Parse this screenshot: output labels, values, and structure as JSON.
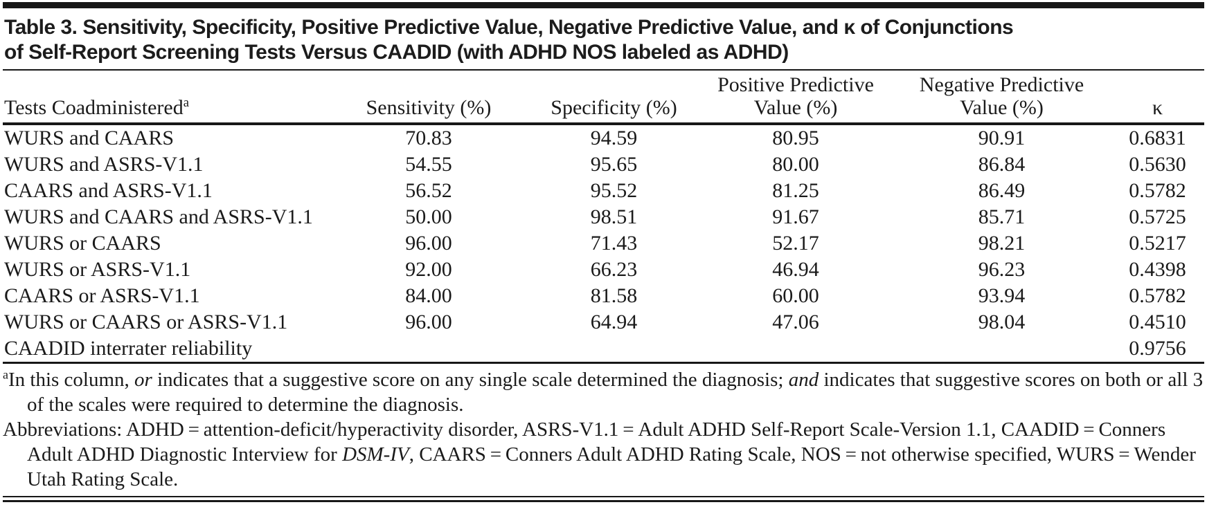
{
  "title": {
    "line1": "Table 3. Sensitivity, Specificity, Positive Predictive Value, Negative Predictive Value, and κ of Conjunctions",
    "line2": "of Self-Report Screening Tests Versus CAADID (with ADHD NOS labeled as ADHD)"
  },
  "table": {
    "columns": [
      {
        "id": "tests",
        "lines": [
          "Tests Coadministered"
        ],
        "sup": "a",
        "align": "left"
      },
      {
        "id": "sensitivity",
        "lines": [
          "Sensitivity (%)"
        ],
        "align": "center"
      },
      {
        "id": "specificity",
        "lines": [
          "Specificity (%)"
        ],
        "align": "center"
      },
      {
        "id": "ppv",
        "lines": [
          "Positive Predictive",
          "Value (%)"
        ],
        "align": "center"
      },
      {
        "id": "npv",
        "lines": [
          "Negative Predictive",
          "Value (%)"
        ],
        "align": "center"
      },
      {
        "id": "kappa",
        "lines": [
          "κ"
        ],
        "align": "center"
      }
    ],
    "rows": [
      [
        "WURS and CAARS",
        "70.83",
        "94.59",
        "80.95",
        "90.91",
        "0.6831"
      ],
      [
        "WURS and ASRS-V1.1",
        "54.55",
        "95.65",
        "80.00",
        "86.84",
        "0.5630"
      ],
      [
        "CAARS and ASRS-V1.1",
        "56.52",
        "95.52",
        "81.25",
        "86.49",
        "0.5782"
      ],
      [
        "WURS and CAARS and ASRS-V1.1",
        "50.00",
        "98.51",
        "91.67",
        "85.71",
        "0.5725"
      ],
      [
        "WURS or CAARS",
        "96.00",
        "71.43",
        "52.17",
        "98.21",
        "0.5217"
      ],
      [
        "WURS or ASRS-V1.1",
        "92.00",
        "66.23",
        "46.94",
        "96.23",
        "0.4398"
      ],
      [
        "CAARS or ASRS-V1.1",
        "84.00",
        "81.58",
        "60.00",
        "93.94",
        "0.5782"
      ],
      [
        "WURS or CAARS or ASRS-V1.1",
        "96.00",
        "64.94",
        "47.06",
        "98.04",
        "0.4510"
      ],
      [
        "CAADID interrater reliability",
        "",
        "",
        "",
        "",
        "0.9756"
      ]
    ]
  },
  "footnotes": {
    "a": {
      "marker": "a",
      "parts": [
        {
          "text": "In this column, ",
          "italic": false
        },
        {
          "text": "or",
          "italic": true
        },
        {
          "text": " indicates that a suggestive score on any single scale determined the diagnosis; ",
          "italic": false
        },
        {
          "text": "and",
          "italic": true
        },
        {
          "text": " indicates that suggestive scores on both or all 3 of the scales were required to determine the diagnosis.",
          "italic": false
        }
      ]
    },
    "abbreviations": {
      "parts": [
        {
          "text": "Abbreviations: ADHD = attention-deficit/hyperactivity disorder, ASRS-V1.1 = Adult ADHD Self-Report Scale-Version 1.1, CAADID = Conners Adult ADHD Diagnostic Interview for ",
          "italic": false
        },
        {
          "text": "DSM-IV",
          "italic": true
        },
        {
          "text": ", CAARS = Conners Adult ADHD Rating Scale, NOS = not otherwise specified, WURS = Wender Utah Rating Scale.",
          "italic": false
        }
      ]
    }
  },
  "colors": {
    "ink": "#1a1a1a",
    "rule": "#171717",
    "background": "#ffffff"
  }
}
